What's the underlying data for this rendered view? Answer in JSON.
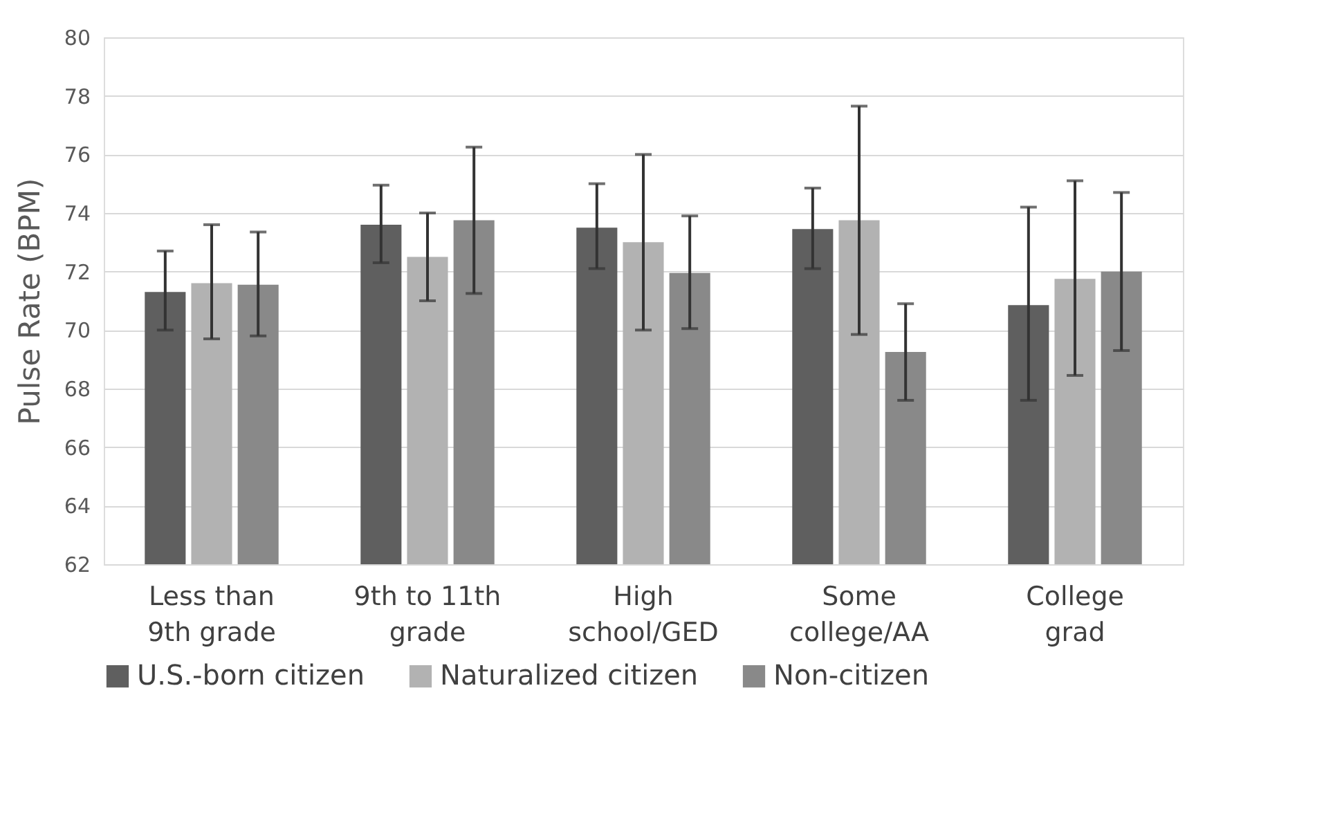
{
  "chart_data": {
    "type": "bar",
    "ylabel": "Pulse Rate (BPM)",
    "categories": [
      "Less than 9th grade",
      "9th to 11th grade",
      "High school/GED",
      "Some college/AA",
      "College grad"
    ],
    "series": [
      {
        "name": "U.S.-born citizen",
        "color": "#5f5f5f",
        "values": [
          71.3,
          73.6,
          73.5,
          73.45,
          70.85
        ],
        "errors": [
          [
            70.0,
            72.7
          ],
          [
            72.3,
            74.95
          ],
          [
            72.1,
            75.0
          ],
          [
            72.1,
            74.85
          ],
          [
            67.6,
            74.2
          ]
        ]
      },
      {
        "name": "Naturalized citizen",
        "color": "#b2b2b2",
        "values": [
          71.6,
          72.5,
          73.0,
          73.75,
          71.75
        ],
        "errors": [
          [
            69.7,
            73.6
          ],
          [
            71.0,
            74.0
          ],
          [
            70.0,
            76.0
          ],
          [
            69.85,
            77.65
          ],
          [
            68.45,
            75.1
          ]
        ]
      },
      {
        "name": "Non-citizen",
        "color": "#898989",
        "values": [
          71.55,
          73.75,
          71.95,
          69.25,
          72.0
        ],
        "errors": [
          [
            69.8,
            73.35
          ],
          [
            71.25,
            76.25
          ],
          [
            70.05,
            73.9
          ],
          [
            67.6,
            70.9
          ],
          [
            69.3,
            74.7
          ]
        ]
      }
    ],
    "ylim": [
      62,
      80
    ],
    "yticks": [
      62,
      64,
      66,
      68,
      70,
      72,
      74,
      76,
      78,
      80
    ],
    "grid": "y",
    "legend": "bottom"
  }
}
